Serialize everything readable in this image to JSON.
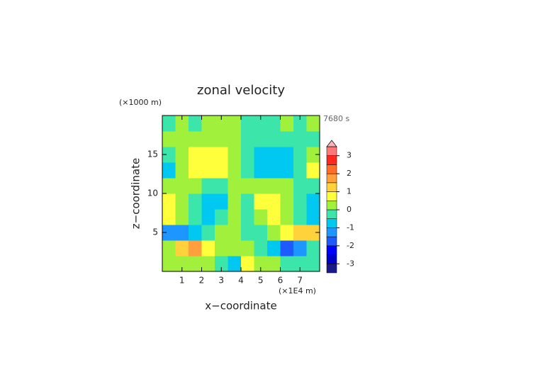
{
  "chart_data": {
    "type": "contour",
    "title": "zonal velocity",
    "x_label": "x−coordinate",
    "y_label": "z−coordinate",
    "x_unit": "(×1E4 m)",
    "y_unit": "(×1000 m)",
    "time_label": "7680 s",
    "xlim": [
      0,
      8
    ],
    "ylim": [
      0,
      20
    ],
    "xticks": [
      1,
      2,
      3,
      4,
      5,
      6,
      7
    ],
    "yticks": [
      5,
      10,
      15
    ],
    "z": [
      [
        0.4,
        0.3,
        0.2,
        0,
        -0.2,
        -0.6,
        0.6,
        0.2,
        0,
        -0.2,
        -0.3,
        -0.4
      ],
      [
        0.2,
        1.2,
        1.6,
        0.8,
        0.3,
        0,
        0,
        -0.3,
        -0.8,
        -1.6,
        -1.2,
        -0.2
      ],
      [
        -1.2,
        -1.3,
        -0.7,
        -0.3,
        0.2,
        0.3,
        -0.3,
        -0.2,
        0.3,
        0.7,
        1.2,
        1.2
      ],
      [
        0.6,
        0.2,
        -0.2,
        -0.6,
        -0.4,
        0.1,
        -0.1,
        0.4,
        0.6,
        0.2,
        -0.2,
        -0.6
      ],
      [
        0.8,
        0.2,
        -0.4,
        -0.8,
        -0.6,
        0.2,
        -0.2,
        0.6,
        0.8,
        0.4,
        -0.2,
        -0.8
      ],
      [
        0.2,
        0.3,
        0.1,
        -0.3,
        -0.2,
        0.2,
        0.3,
        0.2,
        0.2,
        0,
        -0.2,
        -0.3
      ],
      [
        -0.8,
        0.2,
        0.7,
        0.8,
        0.6,
        0.2,
        -0.3,
        -0.7,
        -0.8,
        -0.6,
        -0.2,
        0.8
      ],
      [
        -0.3,
        0.2,
        0.6,
        0.8,
        0.7,
        0.2,
        -0.2,
        -0.6,
        -0.8,
        -0.7,
        -0.2,
        0.3
      ],
      [
        0.1,
        0.2,
        0.4,
        0.3,
        0.3,
        0.1,
        -0.1,
        -0.3,
        -0.3,
        -0.4,
        -0.2,
        -0.1
      ],
      [
        -0.3,
        0.3,
        -0.2,
        0.3,
        0.3,
        0.2,
        -0.2,
        -0.3,
        -0.3,
        0.2,
        -0.3,
        0.3
      ]
    ],
    "levels": [
      -3.5,
      -3,
      -2.5,
      -2,
      -1.5,
      -1,
      -0.5,
      0,
      0.5,
      1,
      1.5,
      2,
      2.5,
      3,
      3.5
    ],
    "colors": [
      "#1a1a8c",
      "#0000c8",
      "#0000ff",
      "#1e5aff",
      "#1e96ff",
      "#00c8f0",
      "#3ce6aa",
      "#a0f03c",
      "#ffff3c",
      "#ffd23c",
      "#ffa03c",
      "#ff6e28",
      "#ff281e",
      "#ff7878"
    ],
    "extend_color": "#ffb4b4",
    "colorbar_ticks": [
      -3,
      -2,
      -1,
      0,
      1,
      2,
      3
    ]
  }
}
